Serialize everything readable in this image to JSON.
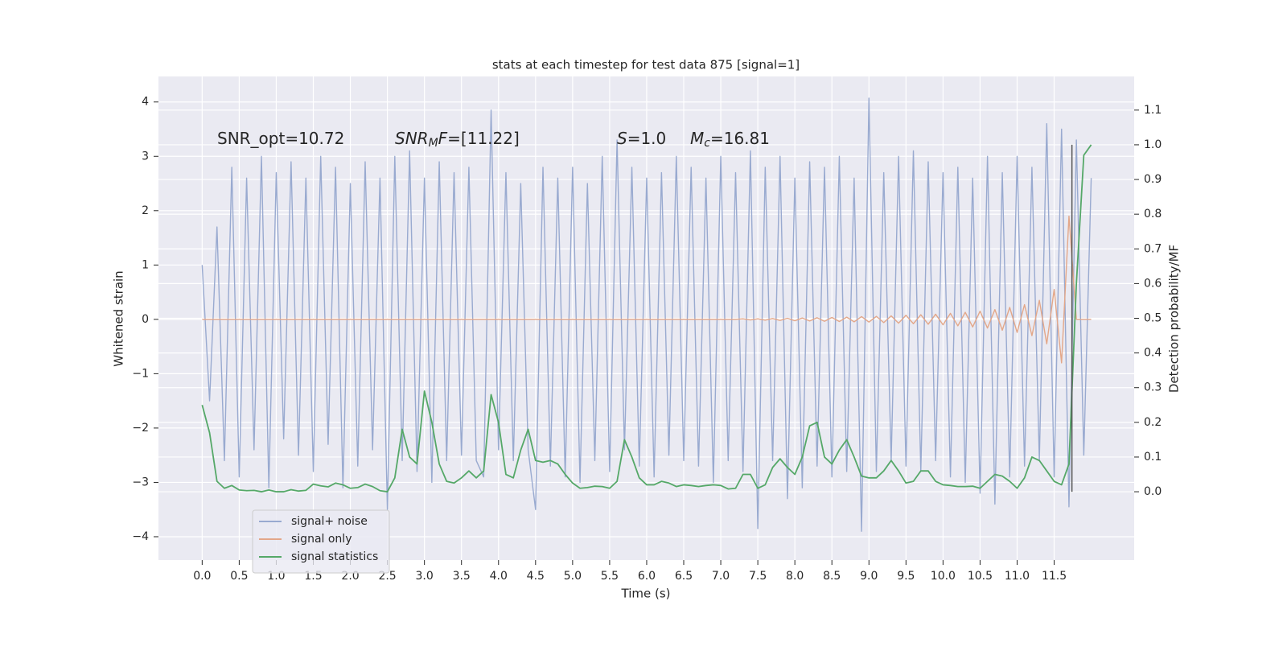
{
  "chart_data": {
    "type": "line",
    "title": "stats at each timestep for test data 875 [signal=1]",
    "xlabel": "Time (s)",
    "ylabel": "Whitened strain",
    "y2label": "Detection probability/MF",
    "annotations": [
      {
        "parts": [
          {
            "text": "SNR_opt=10.72"
          }
        ]
      },
      {
        "parts": [
          {
            "text": "SNR",
            "italic": true
          },
          {
            "text": "M",
            "italic": true,
            "sub": true
          },
          {
            "text": "F",
            "italic": true
          },
          {
            "text": "=[11.22]"
          }
        ]
      },
      {
        "parts": [
          {
            "text": "S",
            "italic": true
          },
          {
            "text": "=1.0"
          }
        ]
      },
      {
        "parts": [
          {
            "text": "M",
            "italic": true
          },
          {
            "text": "c",
            "italic": true,
            "sub": true
          },
          {
            "text": "=16.81"
          }
        ]
      }
    ],
    "x": [
      0,
      0.1,
      0.2,
      0.3,
      0.4,
      0.5,
      0.6,
      0.7,
      0.8,
      0.9,
      1,
      1.1,
      1.2,
      1.3,
      1.4,
      1.5,
      1.6,
      1.7,
      1.8,
      1.9,
      2,
      2.1,
      2.2,
      2.3,
      2.4,
      2.5,
      2.6,
      2.7,
      2.8,
      2.9,
      3,
      3.1,
      3.2,
      3.3,
      3.4,
      3.5,
      3.6,
      3.7,
      3.8,
      3.9,
      4,
      4.1,
      4.2,
      4.3,
      4.4,
      4.5,
      4.6,
      4.7,
      4.8,
      4.9,
      5,
      5.1,
      5.2,
      5.3,
      5.4,
      5.5,
      5.6,
      5.7,
      5.8,
      5.9,
      6,
      6.1,
      6.2,
      6.3,
      6.4,
      6.5,
      6.6,
      6.7,
      6.8,
      6.9,
      7,
      7.1,
      7.2,
      7.3,
      7.4,
      7.5,
      7.6,
      7.7,
      7.8,
      7.9,
      8,
      8.1,
      8.2,
      8.3,
      8.4,
      8.5,
      8.6,
      8.7,
      8.8,
      8.9,
      9,
      9.1,
      9.2,
      9.3,
      9.4,
      9.5,
      9.6,
      9.7,
      9.8,
      9.9,
      10,
      10.1,
      10.2,
      10.3,
      10.4,
      10.5,
      10.6,
      10.7,
      10.8,
      10.9,
      11,
      11.1,
      11.2,
      11.3,
      11.4,
      11.5,
      11.6,
      11.7,
      11.8,
      11.9,
      12
    ],
    "series": [
      {
        "name": "signal+ noise",
        "color": "#99aad0",
        "values": [
          1.0,
          -1.5,
          1.7,
          -2.6,
          2.8,
          -2.9,
          2.6,
          -2.4,
          3.0,
          -3.1,
          2.7,
          -2.2,
          2.9,
          -2.5,
          2.6,
          -2.8,
          3.0,
          -2.3,
          2.8,
          -3.1,
          2.5,
          -2.7,
          2.9,
          -2.4,
          2.6,
          -3.5,
          3.0,
          -2.6,
          3.1,
          -2.8,
          2.6,
          -3.0,
          2.9,
          -2.6,
          2.7,
          -2.5,
          2.8,
          -2.6,
          -2.9,
          3.85,
          -2.4,
          2.7,
          -2.6,
          2.5,
          -2.4,
          -3.5,
          2.8,
          -2.7,
          2.6,
          -2.9,
          2.8,
          -3.0,
          2.5,
          -2.6,
          3.0,
          -2.8,
          3.3,
          -2.4,
          2.8,
          -2.7,
          2.6,
          -2.9,
          2.7,
          -2.5,
          3.0,
          -2.6,
          2.8,
          -2.7,
          2.6,
          -3.0,
          3.0,
          -2.6,
          2.7,
          -2.8,
          3.1,
          -3.85,
          2.8,
          -2.6,
          3.0,
          -3.3,
          2.6,
          -3.1,
          2.9,
          -2.7,
          2.8,
          -2.9,
          3.0,
          -2.8,
          2.6,
          -3.9,
          4.07,
          -2.8,
          2.7,
          -2.6,
          3.0,
          -2.7,
          3.1,
          -2.8,
          2.9,
          -2.6,
          2.7,
          -2.9,
          2.8,
          -3.0,
          2.6,
          -3.2,
          3.0,
          -3.4,
          2.7,
          -2.9,
          3.0,
          -2.7,
          2.8,
          -2.6,
          3.6,
          -2.9,
          3.5,
          -3.45,
          3.3,
          -2.5,
          2.6
        ]
      },
      {
        "name": "signal only",
        "color": "#e3a789",
        "values": [
          0,
          0,
          0,
          0,
          0,
          0,
          0,
          0,
          0,
          0,
          0,
          0,
          0,
          0,
          0,
          0,
          0,
          0,
          0,
          0,
          0,
          0,
          0,
          0,
          0,
          0,
          0,
          0,
          0,
          0,
          0,
          0,
          0,
          0,
          0,
          0,
          0,
          0,
          0,
          0,
          0,
          0,
          0,
          0,
          0,
          0,
          0,
          0,
          0,
          0,
          0,
          0,
          0,
          0,
          0,
          0,
          0,
          0,
          0,
          0,
          0,
          0,
          0,
          0,
          0,
          0,
          0,
          0,
          0,
          0,
          0,
          0,
          0,
          0.01,
          -0.01,
          0.01,
          -0.015,
          0.015,
          -0.02,
          0.02,
          -0.025,
          0.025,
          -0.03,
          0.03,
          -0.035,
          0.035,
          -0.04,
          0.04,
          -0.045,
          0.05,
          -0.05,
          0.055,
          -0.06,
          0.065,
          -0.07,
          0.075,
          -0.08,
          0.085,
          -0.09,
          0.095,
          -0.1,
          0.11,
          -0.12,
          0.13,
          -0.14,
          0.15,
          -0.16,
          0.18,
          -0.2,
          0.22,
          -0.24,
          0.27,
          -0.3,
          0.35,
          -0.45,
          0.55,
          -0.8,
          1.9,
          0,
          0,
          0
        ]
      },
      {
        "name": "signal statistics",
        "color": "#55a868",
        "axis": "y2",
        "values": [
          0.25,
          0.17,
          0.03,
          0.01,
          0.018,
          0.005,
          0.003,
          0.004,
          0.0,
          0.005,
          0.0,
          0.0,
          0.006,
          0.002,
          0.004,
          0.022,
          0.017,
          0.014,
          0.025,
          0.02,
          0.01,
          0.012,
          0.022,
          0.015,
          0.003,
          0.0,
          0.04,
          0.18,
          0.1,
          0.08,
          0.29,
          0.2,
          0.08,
          0.03,
          0.025,
          0.04,
          0.06,
          0.04,
          0.06,
          0.28,
          0.2,
          0.05,
          0.04,
          0.12,
          0.18,
          0.09,
          0.085,
          0.09,
          0.08,
          0.05,
          0.025,
          0.01,
          0.012,
          0.016,
          0.015,
          0.01,
          0.03,
          0.15,
          0.1,
          0.04,
          0.02,
          0.02,
          0.03,
          0.025,
          0.015,
          0.02,
          0.018,
          0.015,
          0.018,
          0.02,
          0.018,
          0.008,
          0.01,
          0.05,
          0.05,
          0.01,
          0.02,
          0.07,
          0.095,
          0.07,
          0.05,
          0.1,
          0.19,
          0.2,
          0.1,
          0.08,
          0.12,
          0.15,
          0.1,
          0.045,
          0.04,
          0.04,
          0.06,
          0.09,
          0.06,
          0.025,
          0.03,
          0.06,
          0.06,
          0.03,
          0.02,
          0.018,
          0.015,
          0.015,
          0.016,
          0.01,
          0.03,
          0.05,
          0.045,
          0.03,
          0.01,
          0.04,
          0.1,
          0.09,
          0.06,
          0.03,
          0.02,
          0.08,
          0.6,
          0.97,
          1.0
        ]
      }
    ],
    "vline": {
      "x": 11.74,
      "y2": [
        0,
        1
      ],
      "color": "#555555"
    },
    "xlim": [
      -0.59,
      12.58
    ],
    "ylim": [
      -4.43,
      4.47
    ],
    "y2lim": [
      -0.197,
      1.197
    ],
    "xticks": [
      {
        "value": 0,
        "label": "0.0"
      },
      0.5,
      {
        "value": 1,
        "label": "1.0"
      },
      1.5,
      {
        "value": 2,
        "label": "2.0"
      },
      2.5,
      {
        "value": 3,
        "label": "3.0"
      },
      3.5,
      {
        "value": 4,
        "label": "4.0"
      },
      4.5,
      {
        "value": 5,
        "label": "5.0"
      },
      5.5,
      {
        "value": 6,
        "label": "6.0"
      },
      6.5,
      {
        "value": 7,
        "label": "7.0"
      },
      7.5,
      {
        "value": 8,
        "label": "8.0"
      },
      8.5,
      {
        "value": 9,
        "label": "9.0"
      },
      9.5,
      {
        "value": 10,
        "label": "10.0"
      },
      10.5,
      {
        "value": 11,
        "label": "11.0"
      },
      11.5
    ],
    "yticks": [
      {
        "value": -4,
        "label": "−4"
      },
      {
        "value": -3,
        "label": "−3"
      },
      {
        "value": -2,
        "label": "−2"
      },
      {
        "value": -1,
        "label": "−1"
      },
      0,
      1,
      2,
      3,
      4
    ],
    "y2ticks": [
      {
        "value": 0,
        "label": "0.0"
      },
      0.1,
      0.2,
      0.3,
      0.4,
      0.5,
      0.6,
      0.7,
      0.8,
      0.9,
      {
        "value": 1,
        "label": "1.0"
      },
      1.1
    ],
    "grid": true,
    "legend": "lower left"
  }
}
